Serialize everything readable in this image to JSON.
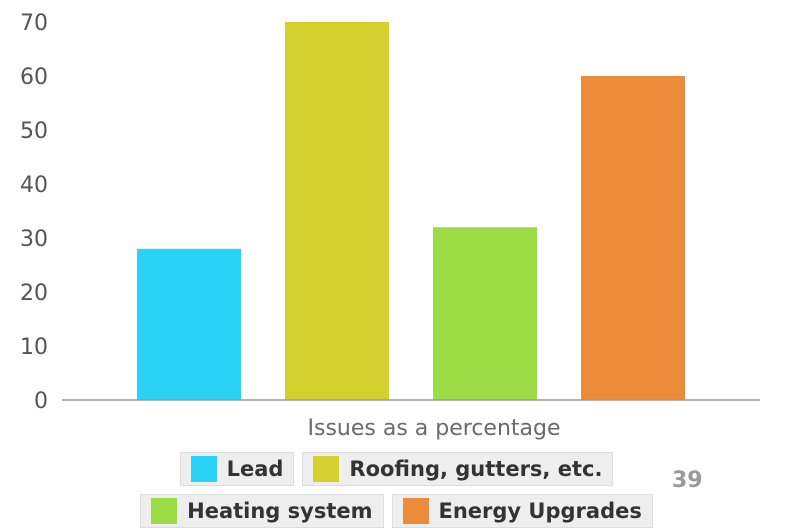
{
  "chart_data": {
    "type": "bar",
    "title": "",
    "xlabel": "Issues as a percentage",
    "ylabel": "",
    "ylim": [
      0,
      70
    ],
    "yticks": [
      "0",
      "10",
      "20",
      "30",
      "40",
      "50",
      "60",
      "70"
    ],
    "grid": false,
    "legend_position": "bottom",
    "series": [
      {
        "name": "Lead",
        "values": [
          28
        ],
        "color": "#29d2f7"
      },
      {
        "name": "Roofing, gutters, etc.",
        "values": [
          70
        ],
        "color": "#d4d12e"
      },
      {
        "name": "Heating system",
        "values": [
          32
        ],
        "color": "#9cdd45"
      },
      {
        "name": "Energy Upgrades",
        "values": [
          60
        ],
        "color": "#ec8c3a"
      }
    ]
  },
  "page_number": "39"
}
